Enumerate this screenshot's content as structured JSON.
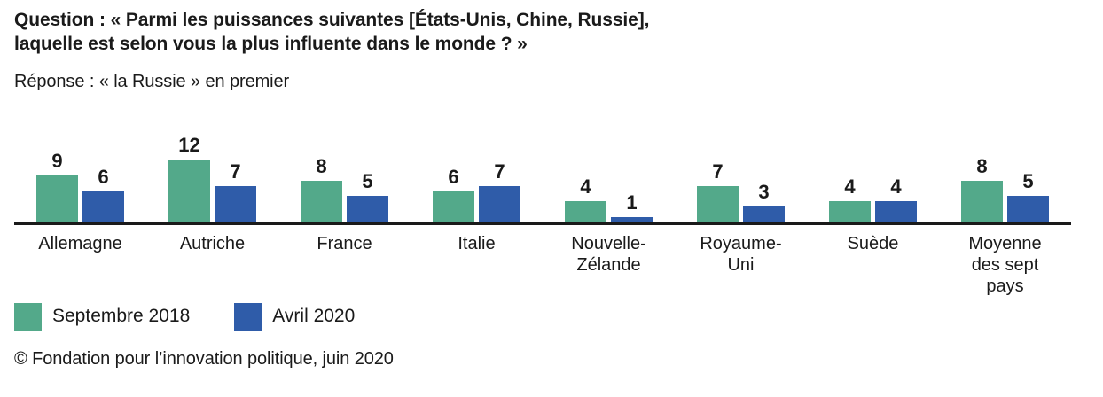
{
  "header": {
    "question_line1": "Question : « Parmi les puissances suivantes [États-Unis, Chine, Russie],",
    "question_line2": "laquelle est selon vous la plus influente dans le monde ? »",
    "response": "Réponse : « la Russie » en premier"
  },
  "chart_data": {
    "type": "bar",
    "categories": [
      "Allemagne",
      "Autriche",
      "France",
      "Italie",
      "Nouvelle-\nZélande",
      "Royaume-\nUni",
      "Suède",
      "Moyenne\ndes sept\npays"
    ],
    "series": [
      {
        "name": "Septembre 2018",
        "color": "#53a98a",
        "values": [
          9,
          12,
          8,
          6,
          4,
          7,
          4,
          8
        ]
      },
      {
        "name": "Avril 2020",
        "color": "#2f5ca9",
        "values": [
          6,
          7,
          5,
          7,
          1,
          3,
          4,
          5
        ]
      }
    ],
    "title": "Réponse : « la Russie » en premier",
    "xlabel": "",
    "ylabel": "",
    "ylim": [
      0,
      12
    ],
    "value_labels": true,
    "grid": false,
    "legend_position": "bottom",
    "axis_color": "#1a1a1a"
  },
  "legend_note": "legend labels are bound from chart_data.series names",
  "footer": {
    "source": "© Fondation pour l’innovation politique, juin 2020"
  }
}
